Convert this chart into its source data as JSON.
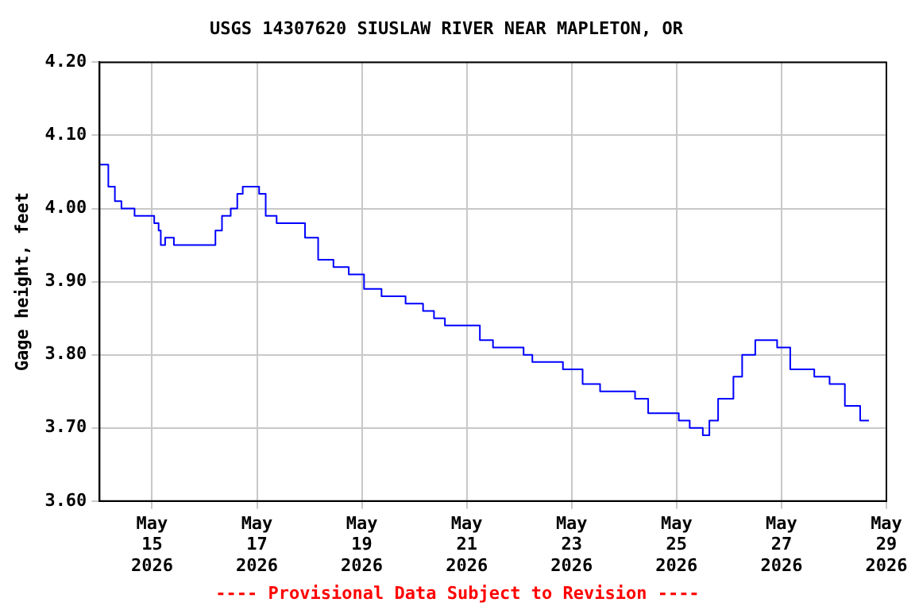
{
  "chart_data": {
    "type": "step",
    "title": "USGS 14307620 SIUSLAW RIVER NEAR MAPLETON, OR",
    "ylabel": "Gage height, feet",
    "x": [
      "2026-05-14T00:00",
      "2026-05-14T04:00",
      "2026-05-14T07:00",
      "2026-05-14T10:00",
      "2026-05-14T16:00",
      "2026-05-14T22:00",
      "2026-05-15T01:00",
      "2026-05-15T03:00",
      "2026-05-15T04:00",
      "2026-05-15T06:00",
      "2026-05-15T10:00",
      "2026-05-16T03:00",
      "2026-05-16T05:00",
      "2026-05-16T08:00",
      "2026-05-16T12:00",
      "2026-05-16T15:00",
      "2026-05-16T17:30",
      "2026-05-16T22:30",
      "2026-05-17T01:00",
      "2026-05-17T04:00",
      "2026-05-17T09:00",
      "2026-05-17T18:00",
      "2026-05-17T22:00",
      "2026-05-18T04:00",
      "2026-05-18T11:00",
      "2026-05-18T18:00",
      "2026-05-19T01:00",
      "2026-05-19T09:00",
      "2026-05-19T20:00",
      "2026-05-20T04:00",
      "2026-05-20T09:00",
      "2026-05-20T14:00",
      "2026-05-21T06:00",
      "2026-05-21T12:00",
      "2026-05-22T02:00",
      "2026-05-22T06:00",
      "2026-05-22T20:00",
      "2026-05-23T05:00",
      "2026-05-23T13:00",
      "2026-05-24T05:00",
      "2026-05-24T11:00",
      "2026-05-25T01:00",
      "2026-05-25T06:00",
      "2026-05-25T12:00",
      "2026-05-25T15:00",
      "2026-05-25T19:00",
      "2026-05-26T02:00",
      "2026-05-26T06:00",
      "2026-05-26T12:00",
      "2026-05-26T22:00",
      "2026-05-27T04:00",
      "2026-05-27T15:00",
      "2026-05-27T22:00",
      "2026-05-28T05:00",
      "2026-05-28T12:00",
      "2026-05-28T16:00"
    ],
    "series": [
      {
        "color": "#0000ff",
        "values": [
          4.06,
          4.03,
          4.01,
          4.0,
          3.99,
          3.99,
          3.98,
          3.97,
          3.95,
          3.96,
          3.95,
          3.95,
          3.97,
          3.99,
          4.0,
          4.02,
          4.03,
          4.03,
          4.02,
          3.99,
          3.98,
          3.98,
          3.96,
          3.93,
          3.92,
          3.91,
          3.89,
          3.88,
          3.87,
          3.86,
          3.85,
          3.84,
          3.82,
          3.81,
          3.8,
          3.79,
          3.78,
          3.76,
          3.75,
          3.74,
          3.72,
          3.71,
          3.7,
          3.69,
          3.71,
          3.74,
          3.77,
          3.8,
          3.82,
          3.81,
          3.78,
          3.77,
          3.76,
          3.73,
          3.71,
          3.71
        ]
      }
    ],
    "xlim": [
      "2026-05-14",
      "2026-05-29"
    ],
    "xticks": [
      {
        "value": "2026-05-15",
        "label": "May 15 2026"
      },
      {
        "value": "2026-05-17",
        "label": "May 17 2026"
      },
      {
        "value": "2026-05-19",
        "label": "May 19 2026"
      },
      {
        "value": "2026-05-21",
        "label": "May 21 2026"
      },
      {
        "value": "2026-05-23",
        "label": "May 23 2026"
      },
      {
        "value": "2026-05-25",
        "label": "May 25 2026"
      },
      {
        "value": "2026-05-27",
        "label": "May 27 2026"
      },
      {
        "value": "2026-05-29",
        "label": "May 29 2026"
      }
    ],
    "ylim": [
      3.6,
      4.2
    ],
    "yticks": [
      {
        "value": 3.6,
        "label": "3.60"
      },
      {
        "value": 3.7,
        "label": "3.70"
      },
      {
        "value": 3.8,
        "label": "3.80"
      },
      {
        "value": 3.9,
        "label": "3.90"
      },
      {
        "value": 4.0,
        "label": "4.00"
      },
      {
        "value": 4.1,
        "label": "4.10"
      },
      {
        "value": 4.2,
        "label": "4.20"
      }
    ],
    "grid": true,
    "annotations": [
      "---- Provisional Data Subject to Revision ----"
    ]
  }
}
